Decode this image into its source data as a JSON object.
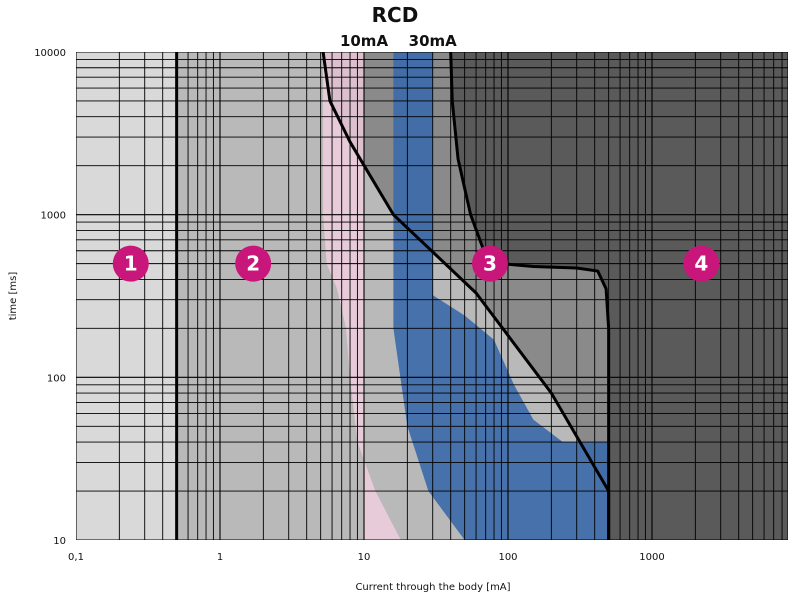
{
  "chart_data": {
    "type": "area",
    "title": "RCD",
    "xlabel": "Current through the body [mA]",
    "ylabel": "time [ms]",
    "x_scale": "log",
    "y_scale": "log",
    "xlim": [
      0.1,
      9000
    ],
    "ylim": [
      10,
      10000
    ],
    "x_ticks": [
      {
        "value": 0.1,
        "label": "0,1"
      },
      {
        "value": 1,
        "label": "1"
      },
      {
        "value": 10,
        "label": "10"
      },
      {
        "value": 100,
        "label": "100"
      },
      {
        "value": 1000,
        "label": "1000"
      }
    ],
    "y_ticks": [
      {
        "value": 10,
        "label": "10"
      },
      {
        "value": 100,
        "label": "100"
      },
      {
        "value": 1000,
        "label": "1000"
      },
      {
        "value": 10000,
        "label": "10000"
      }
    ],
    "grid": true,
    "rcd_labels": [
      {
        "text": "10mA",
        "x": 10
      },
      {
        "text": "30mA",
        "x": 30
      }
    ],
    "zones": [
      {
        "label": "1",
        "x": 0.24,
        "y": 500,
        "color": "#d9d9d9"
      },
      {
        "label": "2",
        "x": 1.7,
        "y": 500,
        "color": "#b9b9b9"
      },
      {
        "label": "3",
        "x": 75,
        "y": 500,
        "color": "#8a8a8a"
      },
      {
        "label": "4",
        "x": 2200,
        "y": 500,
        "color": "#5a5a5a"
      }
    ],
    "boundaries": [
      {
        "name": "boundary-1-2",
        "points": [
          [
            0.5,
            10
          ],
          [
            0.5,
            10000
          ]
        ]
      },
      {
        "name": "boundary-2-3",
        "points": [
          [
            5.2,
            10000
          ],
          [
            5.8,
            5000
          ],
          [
            8,
            2800
          ],
          [
            16,
            1000
          ],
          [
            60,
            330
          ],
          [
            200,
            80
          ],
          [
            500,
            20
          ],
          [
            500,
            10
          ]
        ]
      },
      {
        "name": "boundary-3-4",
        "points": [
          [
            40,
            10000
          ],
          [
            41,
            5000
          ],
          [
            45,
            2200
          ],
          [
            55,
            1000
          ],
          [
            68,
            600
          ],
          [
            90,
            500
          ],
          [
            150,
            480
          ],
          [
            300,
            470
          ],
          [
            420,
            450
          ],
          [
            480,
            350
          ],
          [
            500,
            200
          ],
          [
            500,
            10
          ]
        ]
      }
    ],
    "rcd_10mA_region": [
      [
        5.2,
        10000
      ],
      [
        10,
        10000
      ],
      [
        10,
        10
      ],
      [
        18,
        10
      ],
      [
        12,
        20
      ],
      [
        9,
        40
      ],
      [
        8,
        100
      ],
      [
        7.5,
        200
      ],
      [
        6.5,
        350
      ],
      [
        5.5,
        500
      ],
      [
        5.2,
        1000
      ],
      [
        5.2,
        10000
      ]
    ],
    "rcd_30mA_region": [
      [
        16,
        10000
      ],
      [
        30,
        10000
      ],
      [
        30,
        320
      ],
      [
        50,
        240
      ],
      [
        80,
        170
      ],
      [
        110,
        90
      ],
      [
        150,
        55
      ],
      [
        240,
        40
      ],
      [
        500,
        40
      ],
      [
        500,
        10
      ],
      [
        50,
        10
      ],
      [
        28,
        20
      ],
      [
        20,
        50
      ],
      [
        16,
        200
      ],
      [
        16,
        10000
      ]
    ],
    "colors": {
      "zone1": "#d9d9d9",
      "zone2": "#b9b9b9",
      "zone3": "#8a8a8a",
      "zone4": "#5a5a5a",
      "rcd10": "#f3cfe0",
      "rcd30": "#3d6aa8",
      "marker": "#c8167a",
      "curve": "#000000"
    }
  }
}
